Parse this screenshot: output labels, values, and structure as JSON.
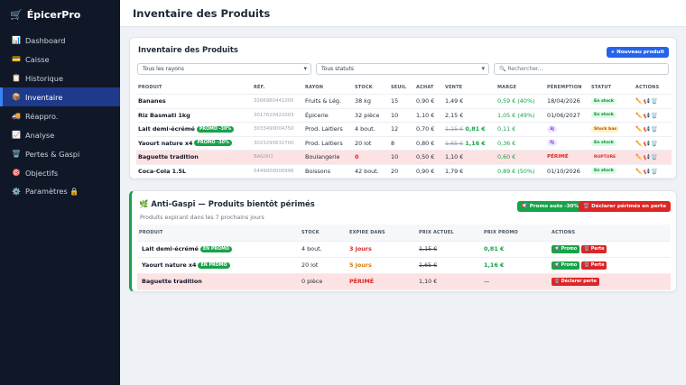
{
  "app": {
    "brand": "ÉpicerPro",
    "brand_icon": "cart-icon"
  },
  "sidebar": {
    "items": [
      {
        "label": "Dashboard",
        "icon": "📊",
        "active": false
      },
      {
        "label": "Caisse",
        "icon": "💳",
        "active": false
      },
      {
        "label": "Historique",
        "icon": "📋",
        "active": false
      },
      {
        "label": "Inventaire",
        "icon": "📦",
        "active": true
      },
      {
        "label": "Réappro.",
        "icon": "🚚",
        "active": false
      },
      {
        "label": "Analyse",
        "icon": "📈",
        "active": false
      },
      {
        "label": "Pertes & Gaspi",
        "icon": "🗑️",
        "active": false
      },
      {
        "label": "Objectifs",
        "icon": "🎯",
        "active": false
      },
      {
        "label": "Paramètres 🔒",
        "icon": "⚙️",
        "active": false
      }
    ]
  },
  "header": {
    "title": "Inventaire des Produits"
  },
  "inventory": {
    "title": "Inventaire des Produits",
    "new_button": "+ Nouveau produit",
    "filter_rayon": "Tous les rayons",
    "filter_status": "Tous statuts",
    "search_placeholder": "🔍 Rechercher...",
    "columns": [
      "Produit",
      "Réf.",
      "Rayon",
      "Stock",
      "Seuil",
      "Achat",
      "Vente",
      "Marge",
      "Péremption",
      "Statut",
      "Actions"
    ],
    "rows": [
      {
        "name": "Bananes",
        "promo": "",
        "ref": "3266980441005",
        "rayon": "Fruits & Lég.",
        "stock": "38 kg",
        "seuil": "15",
        "achat": "0,90 €",
        "vente_old": "",
        "vente": "1,49 €",
        "marge": "0,59 € (40%)",
        "peremption": "18/04/2026",
        "statut": "En stock"
      },
      {
        "name": "Riz Basmati 1kg",
        "promo": "",
        "ref": "3017620422003",
        "rayon": "Épicerie",
        "stock": "32 pièce",
        "seuil": "10",
        "achat": "1,10 €",
        "vente_old": "",
        "vente": "2,15 €",
        "marge": "1,05 € (49%)",
        "peremption": "01/06/2027",
        "statut": "En stock"
      },
      {
        "name": "Lait demi-écrémé",
        "promo": "PROMO -30%",
        "ref": "3033490004750",
        "rayon": "Prod. Laitiers",
        "stock": "4 bout.",
        "seuil": "12",
        "achat": "0,70 €",
        "vente_old": "1,15 €",
        "vente": "0,81 €",
        "marge": "0,11 €",
        "peremption": "3j",
        "statut": "Stock bas"
      },
      {
        "name": "Yaourt nature x4",
        "promo": "PROMO -30%",
        "ref": "3023290632700",
        "rayon": "Prod. Laitiers",
        "stock": "20 lot",
        "seuil": "8",
        "achat": "0,80 €",
        "vente_old": "1,65 €",
        "vente": "1,16 €",
        "marge": "0,36 €",
        "peremption": "5j",
        "statut": "En stock"
      },
      {
        "name": "Baguette tradition",
        "promo": "",
        "ref": "BAG001",
        "rayon": "Boulangerie",
        "stock": "0",
        "seuil": "10",
        "achat": "0,50 €",
        "vente_old": "",
        "vente": "1,10 €",
        "marge": "0,60 €",
        "peremption": "PÉRIMÉ",
        "statut": "RUPTURE"
      },
      {
        "name": "Coca-Cola 1.5L",
        "promo": "",
        "ref": "5449000000996",
        "rayon": "Boissons",
        "stock": "42 bout.",
        "seuil": "20",
        "achat": "0,90 €",
        "vente_old": "",
        "vente": "1,79 €",
        "marge": "0,89 € (50%)",
        "peremption": "01/10/2026",
        "statut": "En stock"
      }
    ]
  },
  "antigaspi": {
    "title": "🌿 Anti-Gaspi — Produits bientôt périmés",
    "subtitle": "Produits expirant dans les 7 prochains jours",
    "promo_auto_button": "📢 Promo auto -30%",
    "declare_button": "🗑️ Déclarer périmés en perte",
    "columns": [
      "Produit",
      "Stock",
      "Expire dans",
      "Prix actuel",
      "Prix promo",
      "Actions"
    ],
    "rows": [
      {
        "name": "Lait demi-écrémé",
        "promo": "EN PROMO",
        "stock": "4 bout.",
        "expire": "3 jours",
        "prix_actuel": "1,15 €",
        "prix_promo": "0,81 €",
        "action1": "📢 Promo",
        "action2": "🗑️ Perte"
      },
      {
        "name": "Yaourt nature x4",
        "promo": "EN PROMO",
        "stock": "20 lot",
        "expire": "5 jours",
        "prix_actuel": "1,65 €",
        "prix_promo": "1,16 €",
        "action1": "📢 Promo",
        "action2": "🗑️ Perte"
      },
      {
        "name": "Baguette tradition",
        "promo": "",
        "stock": "0 pièce",
        "expire": "PÉRIMÉ",
        "prix_actuel": "1,10 €",
        "prix_promo": "—",
        "action1": "🗑️ Déclarer perte",
        "action2": ""
      }
    ]
  },
  "colors": {
    "sidebar_bg": "#101828",
    "accent": "#2563eb",
    "success": "#16a34a",
    "danger": "#dc2626",
    "warning": "#d97706"
  }
}
